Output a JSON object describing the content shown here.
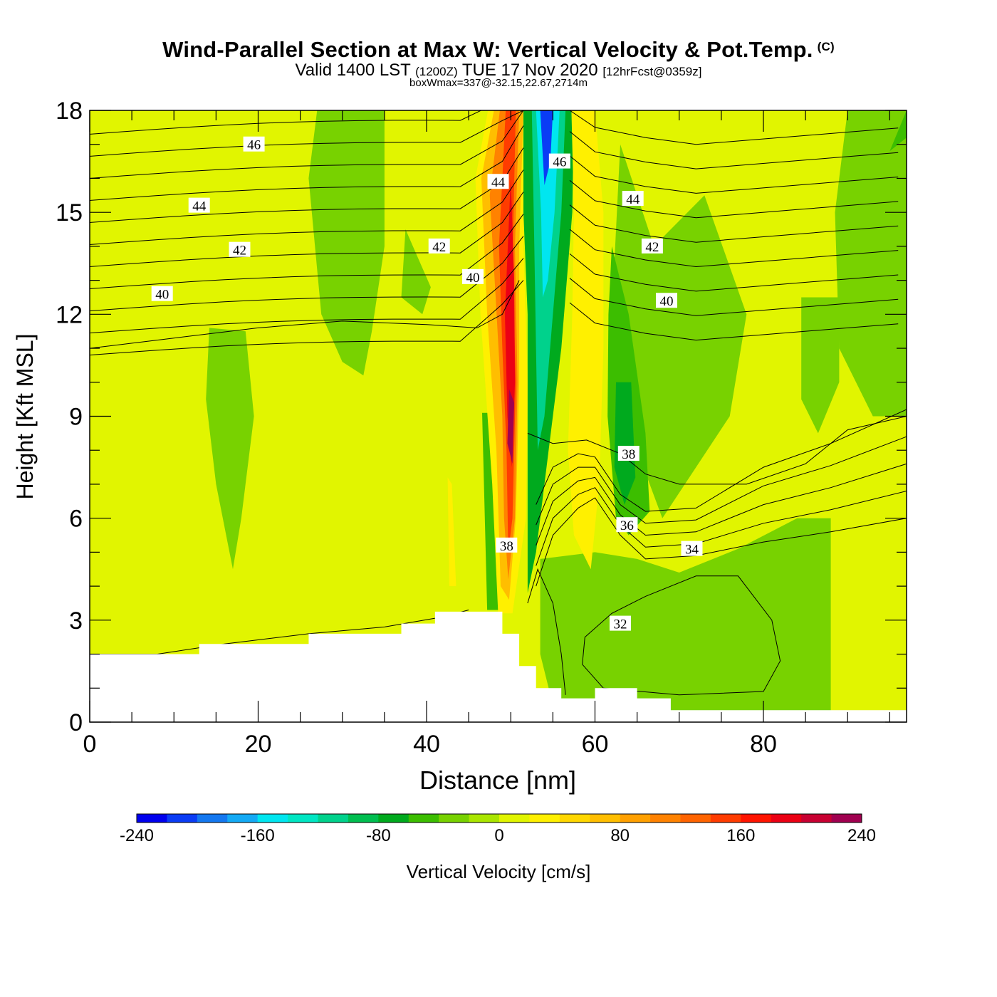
{
  "header": {
    "title": "Wind-Parallel Section at Max W: Vertical Velocity & Pot.Temp.",
    "copyright_mark": "(C)",
    "valid_prefix": "Valid 1400 LST",
    "valid_utc": "(1200Z)",
    "valid_date": "TUE 17 Nov 2020",
    "forecast_tag": "[12hrFcst@0359z]",
    "box_wmax": "boxWmax=337@-32.15,22.67,2714m"
  },
  "chart_data": {
    "type": "heatmap",
    "title": "Wind-Parallel Section at Max W: Vertical Velocity & Pot.Temp.",
    "xlabel": "Distance [nm]",
    "ylabel": "Height [Kft MSL]",
    "xlim": [
      0,
      97
    ],
    "ylim": [
      0,
      18
    ],
    "x_ticks": [
      0,
      20,
      40,
      60,
      80
    ],
    "y_ticks": [
      0,
      3,
      6,
      9,
      12,
      15,
      18
    ],
    "colorbar": {
      "label": "Vertical Velocity [cm/s]",
      "levels": [
        -240,
        -220,
        -200,
        -180,
        -160,
        -140,
        -120,
        -100,
        -80,
        -60,
        -40,
        -20,
        0,
        20,
        40,
        60,
        80,
        100,
        120,
        140,
        160,
        180,
        200,
        220,
        240
      ],
      "tick_labels": [
        "-240",
        "-160",
        "-80",
        "0",
        "80",
        "160",
        "240"
      ],
      "colors": [
        "#0000ee",
        "#0a3cf5",
        "#1478f0",
        "#14aaf5",
        "#00e6f0",
        "#00e6c3",
        "#00d28c",
        "#00be50",
        "#00aa1e",
        "#3cbe00",
        "#78d200",
        "#aae600",
        "#e1f500",
        "#fff000",
        "#ffd700",
        "#ffbe00",
        "#ffa000",
        "#ff8200",
        "#ff6400",
        "#ff3c00",
        "#ff1400",
        "#eb0014",
        "#c80032",
        "#a00050"
      ]
    },
    "theta_contour_labels": [
      {
        "value": "46",
        "x": 19.5,
        "y": 17.0
      },
      {
        "value": "44",
        "x": 13,
        "y": 15.2
      },
      {
        "value": "42",
        "x": 17.8,
        "y": 13.9
      },
      {
        "value": "40",
        "x": 8.6,
        "y": 12.6
      },
      {
        "value": "44",
        "x": 48.5,
        "y": 15.9
      },
      {
        "value": "42",
        "x": 41.5,
        "y": 14.0
      },
      {
        "value": "40",
        "x": 45.5,
        "y": 13.1
      },
      {
        "value": "46",
        "x": 55.8,
        "y": 16.5
      },
      {
        "value": "44",
        "x": 64.5,
        "y": 15.4
      },
      {
        "value": "42",
        "x": 66.8,
        "y": 14.0
      },
      {
        "value": "40",
        "x": 68.5,
        "y": 12.4
      },
      {
        "value": "38",
        "x": 64.0,
        "y": 7.9
      },
      {
        "value": "36",
        "x": 63.8,
        "y": 5.8
      },
      {
        "value": "34",
        "x": 71.5,
        "y": 5.1
      },
      {
        "value": "38",
        "x": 49.5,
        "y": 5.2
      },
      {
        "value": "32",
        "x": 63.0,
        "y": 2.9
      }
    ],
    "terrain_steps": [
      {
        "x0": 0,
        "x1": 13,
        "h": 2.0
      },
      {
        "x0": 13,
        "x1": 26,
        "h": 2.3
      },
      {
        "x0": 26,
        "x1": 37,
        "h": 2.6
      },
      {
        "x0": 37,
        "x1": 41,
        "h": 2.9
      },
      {
        "x0": 41,
        "x1": 49,
        "h": 3.25
      },
      {
        "x0": 49,
        "x1": 51,
        "h": 2.6
      },
      {
        "x0": 51,
        "x1": 53,
        "h": 1.65
      },
      {
        "x0": 53,
        "x1": 56,
        "h": 1.0
      },
      {
        "x0": 56,
        "x1": 60,
        "h": 0.7
      },
      {
        "x0": 60,
        "x1": 65,
        "h": 1.0
      },
      {
        "x0": 65,
        "x1": 69,
        "h": 0.7
      },
      {
        "x0": 69,
        "x1": 97,
        "h": 0.35
      }
    ],
    "max_updraft": {
      "value_cm_s": 337,
      "x": 50,
      "y": 8.5
    }
  }
}
